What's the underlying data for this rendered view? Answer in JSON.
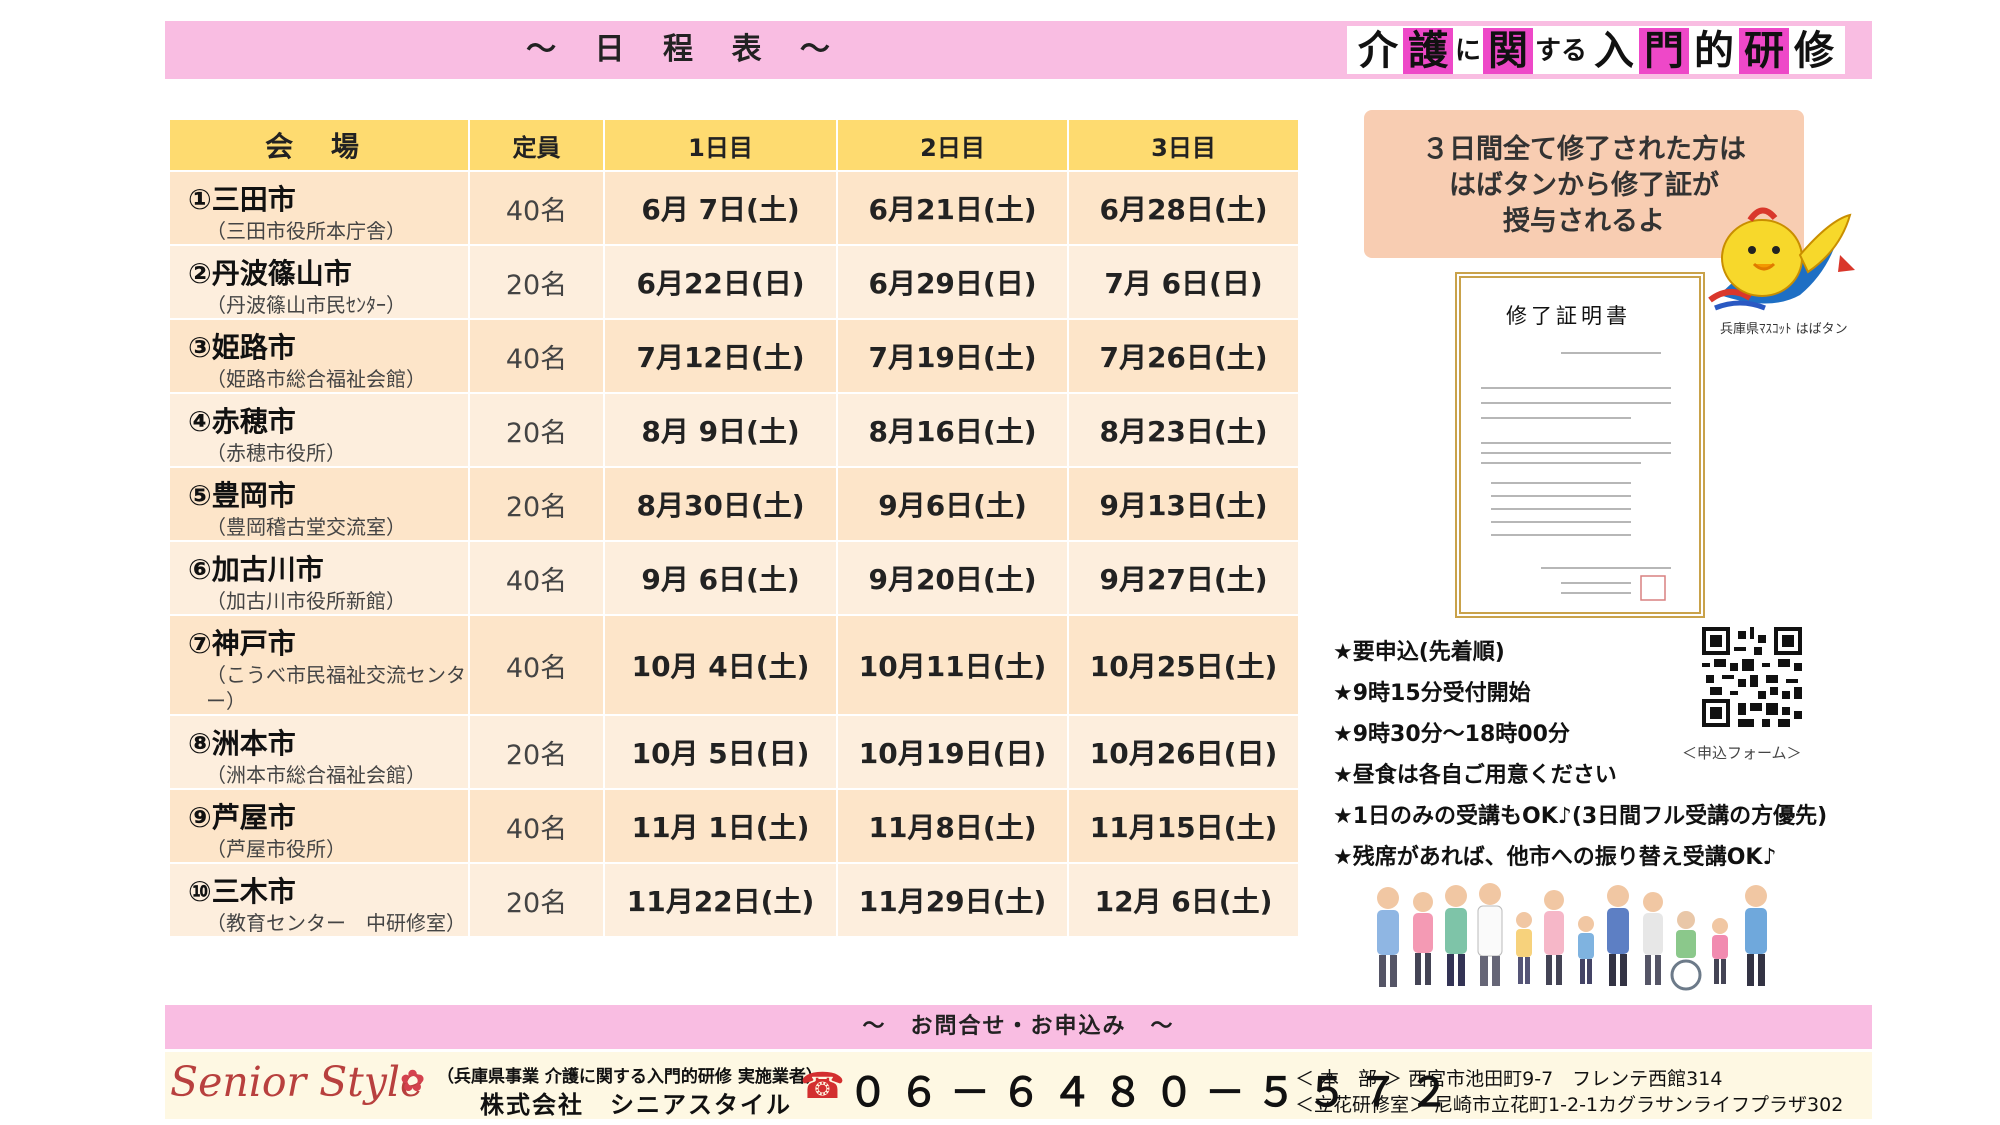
{
  "header": {
    "title": "～ 日 程 表 ～",
    "course": [
      {
        "t": "介",
        "size": "big",
        "hl": false
      },
      {
        "t": "護",
        "size": "big",
        "hl": true
      },
      {
        "t": "に",
        "size": "small",
        "hl": false
      },
      {
        "t": "関",
        "size": "big",
        "hl": true
      },
      {
        "t": "する",
        "size": "small",
        "hl": false
      },
      {
        "t": "入",
        "size": "big",
        "hl": false
      },
      {
        "t": "門",
        "size": "big",
        "hl": true
      },
      {
        "t": "的",
        "size": "big",
        "hl": false
      },
      {
        "t": "研",
        "size": "big",
        "hl": true
      },
      {
        "t": "修",
        "size": "big",
        "hl": false
      }
    ]
  },
  "table": {
    "headers": {
      "place": "会 場",
      "capacity": "定員",
      "day1": "1日目",
      "day2": "2日目",
      "day3": "3日目"
    },
    "rows": [
      {
        "name": "①三田市",
        "sub": "（三田市役所本庁舎）",
        "capacity": "40名",
        "d1": "6月 7日(土)",
        "d2": "6月21日(土)",
        "d3": "6月28日(土)"
      },
      {
        "name": "②丹波篠山市",
        "sub": "（丹波篠山市民ｾﾝﾀｰ）",
        "capacity": "20名",
        "d1": "6月22日(日)",
        "d2": "6月29日(日)",
        "d3": "7月 6日(日)"
      },
      {
        "name": "③姫路市",
        "sub": "（姫路市総合福祉会館）",
        "capacity": "40名",
        "d1": "7月12日(土)",
        "d2": "7月19日(土)",
        "d3": "7月26日(土)"
      },
      {
        "name": "④赤穂市",
        "sub": "（赤穂市役所）",
        "capacity": "20名",
        "d1": "8月 9日(土)",
        "d2": "8月16日(土)",
        "d3": "8月23日(土)"
      },
      {
        "name": "⑤豊岡市",
        "sub": "（豊岡稽古堂交流室）",
        "capacity": "20名",
        "d1": "8月30日(土)",
        "d2": "9月6日(土)",
        "d3": "9月13日(土)"
      },
      {
        "name": "⑥加古川市",
        "sub": "（加古川市役所新館）",
        "capacity": "40名",
        "d1": "9月 6日(土)",
        "d2": "9月20日(土)",
        "d3": "9月27日(土)"
      },
      {
        "name": "⑦神戸市",
        "sub": "（こうべ市民福祉交流センター）",
        "capacity": "40名",
        "d1": "10月 4日(土)",
        "d2": "10月11日(土)",
        "d3": "10月25日(土)"
      },
      {
        "name": "⑧洲本市",
        "sub": "（洲本市総合福祉会館）",
        "capacity": "20名",
        "d1": "10月 5日(日)",
        "d2": "10月19日(日)",
        "d3": "10月26日(日)"
      },
      {
        "name": "⑨芦屋市",
        "sub": "（芦屋市役所）",
        "capacity": "40名",
        "d1": "11月 1日(土)",
        "d2": "11月8日(土)",
        "d3": "11月15日(土)"
      },
      {
        "name": "⑩三木市",
        "sub": "（教育センター　中研修室）",
        "capacity": "20名",
        "d1": "11月22日(土)",
        "d2": "11月29日(土)",
        "d3": "12月 6日(土)"
      }
    ]
  },
  "bubble": {
    "line1": "３日間全て修了された方は",
    "line2": "はばタンから修了証が",
    "line3": "授与されるよ"
  },
  "mascot_caption": "兵庫県ﾏｽｺｯﾄ はばタン",
  "certificate": {
    "title": "修了証明書"
  },
  "qr_caption": "＜申込フォーム＞",
  "notes": [
    "★要申込(先着順)",
    "★9時15分受付開始",
    "★9時30分～18時00分",
    "★昼食は各自ご用意ください",
    "★1日のみの受講もOK♪(3日間フル受講の方優先)",
    "★残席があれば、他市への振り替え受講OK♪"
  ],
  "footer": {
    "bar": "～　お問合せ・お申込み　～",
    "logo": "Senior Style",
    "company_line1": "（兵庫県事業 介護に関する入門的研修 実施業者）",
    "company_line2": "株式会社　シニアスタイル",
    "phone": "０６－６４８０－５５７２",
    "address1": "＜ 本　部 ＞ 西宮市池田町9-7　フレンテ西館314",
    "address2": "＜立花研修室＞ 尼崎市立花町1-2-1カグラサンライフプラザ302"
  },
  "colors": {
    "header_pink": "#f9bde2",
    "highlight": "#ee48c8",
    "table_header": "#fedb70",
    "row_odd": "#fde5c9",
    "row_even": "#fdeedd",
    "bubble": "#f8cdb2",
    "logo_red": "#b8403e"
  }
}
